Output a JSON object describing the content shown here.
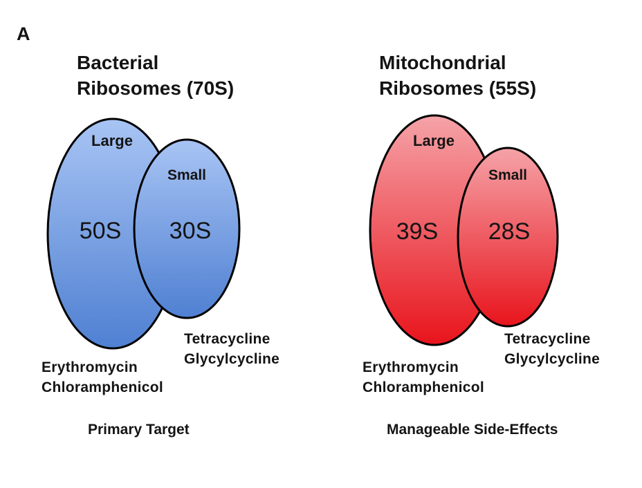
{
  "figure": {
    "panel_label": "A",
    "bacterial": {
      "title_line1": "Bacterial",
      "title_line2": "Ribosomes (70S)",
      "large": {
        "label": "Large",
        "value": "50S"
      },
      "small": {
        "label": "Small",
        "value": "30S"
      },
      "small_drugs": [
        "Tetracycline",
        "Glycylcycline"
      ],
      "large_drugs": [
        "Erythromycin",
        "Chloramphenicol"
      ],
      "caption": "Primary Target",
      "fill_top": "#a8c4f4",
      "fill_bottom": "#4f80d2"
    },
    "mitochondrial": {
      "title_line1": "Mitochondrial",
      "title_line2": "Ribosomes (55S)",
      "large": {
        "label": "Large",
        "value": "39S"
      },
      "small": {
        "label": "Small",
        "value": "28S"
      },
      "small_drugs": [
        "Tetracycline",
        "Glycylcycline"
      ],
      "large_drugs": [
        "Erythromycin",
        "Chloramphenicol"
      ],
      "caption": "Manageable Side-Effects",
      "fill_top": "#f5a3a8",
      "fill_bottom": "#e8141c"
    }
  }
}
